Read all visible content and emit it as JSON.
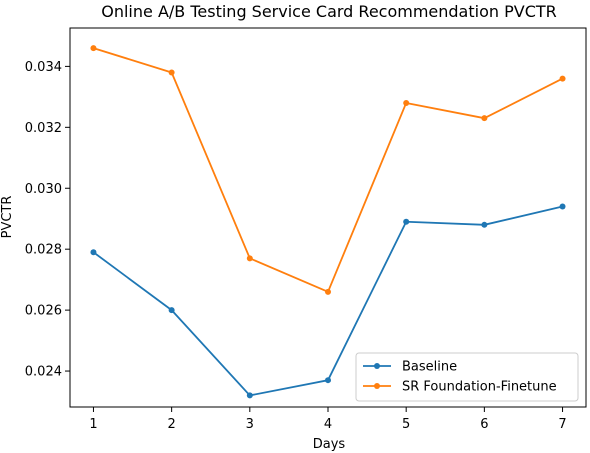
{
  "chart_data": {
    "type": "line",
    "title": "Online A/B Testing Service Card Recommendation PVCTR",
    "xlabel": "Days",
    "ylabel": "PVCTR",
    "x": [
      1,
      2,
      3,
      4,
      5,
      6,
      7
    ],
    "xlim": [
      0.7,
      7.3
    ],
    "ylim": [
      0.02282,
      0.03526
    ],
    "xticks": [
      1,
      2,
      3,
      4,
      5,
      6,
      7
    ],
    "yticks": [
      0.024,
      0.026,
      0.028,
      0.03,
      0.032,
      0.034
    ],
    "ytick_labels": [
      "0.024",
      "0.026",
      "0.028",
      "0.030",
      "0.032",
      "0.034"
    ],
    "grid": false,
    "legend_position": "lower-right",
    "series": [
      {
        "name": "Baseline",
        "color": "#1f77b4",
        "values": [
          0.0279,
          0.026,
          0.0232,
          0.0237,
          0.0289,
          0.0288,
          0.0294
        ]
      },
      {
        "name": "SR Foundation-Finetune",
        "color": "#ff7f0e",
        "values": [
          0.0346,
          0.0338,
          0.0277,
          0.0266,
          0.0328,
          0.0323,
          0.0336
        ]
      }
    ]
  }
}
